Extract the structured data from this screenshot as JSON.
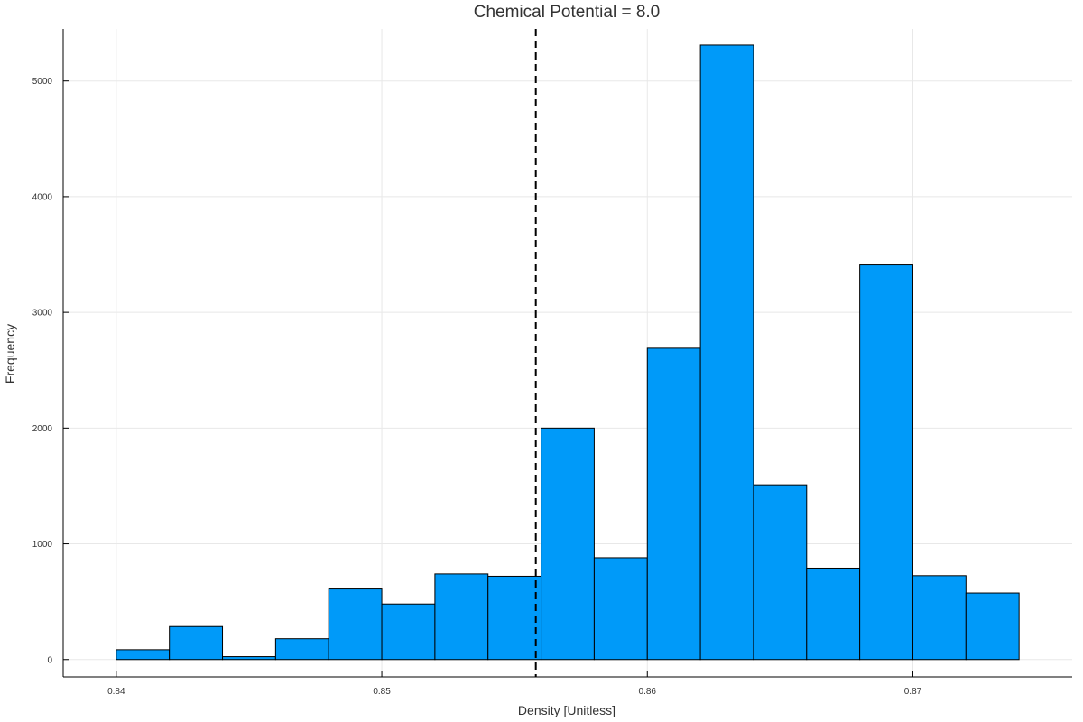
{
  "chart_data": {
    "type": "bar",
    "title": "Chemical Potential = 8.0",
    "xlabel": "Density [Unitless]",
    "ylabel": "Frequency",
    "xlim": [
      0.838,
      0.876
    ],
    "ylim": [
      -150,
      5450
    ],
    "xticks": [
      0.84,
      0.85,
      0.86,
      0.87
    ],
    "xtick_labels": [
      "0.84",
      "0.85",
      "0.86",
      "0.87"
    ],
    "yticks": [
      0,
      1000,
      2000,
      3000,
      4000,
      5000
    ],
    "ytick_labels": [
      "0",
      "1000",
      "2000",
      "3000",
      "4000",
      "5000"
    ],
    "bin_edges": [
      0.84,
      0.842,
      0.844,
      0.846,
      0.848,
      0.85,
      0.852,
      0.854,
      0.856,
      0.858,
      0.86,
      0.862,
      0.864,
      0.866,
      0.868,
      0.87,
      0.872,
      0.874
    ],
    "values": [
      85,
      285,
      25,
      180,
      610,
      480,
      740,
      720,
      2000,
      880,
      2690,
      5310,
      1510,
      790,
      3410,
      725,
      575
    ],
    "vline_x": 0.8558,
    "vline_style": "dashed",
    "bar_color": "#009AF9",
    "grid": true,
    "legend": false
  }
}
